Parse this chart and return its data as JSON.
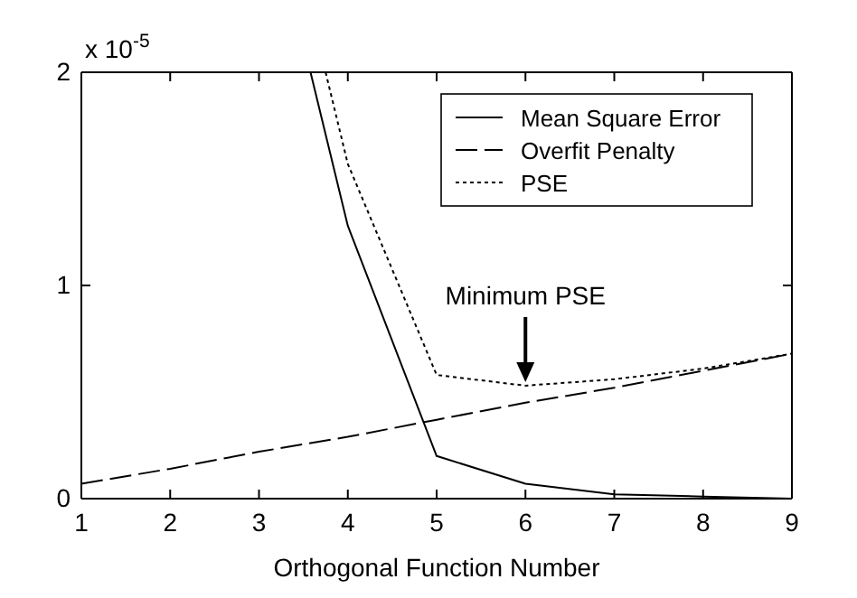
{
  "chart_data": {
    "type": "line",
    "xlabel": "Orthogonal Function Number",
    "xlim": [
      1,
      9
    ],
    "xticks": [
      1,
      2,
      3,
      4,
      5,
      6,
      7,
      8,
      9
    ],
    "ylim": [
      0,
      2
    ],
    "yticks": [
      0,
      1,
      2
    ],
    "series": [
      {
        "name": "Mean Square Error",
        "color": "#000000",
        "line_style": "solid",
        "x": [
          3.58,
          4,
          5,
          6,
          7,
          8,
          9
        ],
        "values": [
          2,
          1.28,
          0.2,
          0.07,
          0.02,
          0.01,
          0
        ]
      },
      {
        "name": "Overfit Penalty",
        "color": "#000000",
        "line_style": "dashed",
        "x": [
          1,
          2,
          3,
          4,
          5,
          6,
          7,
          8,
          9
        ],
        "values": [
          0.07,
          0.14,
          0.22,
          0.29,
          0.37,
          0.45,
          0.52,
          0.6,
          0.68
        ]
      },
      {
        "name": "PSE",
        "color": "#000000",
        "line_style": "dotted",
        "x": [
          3.75,
          4,
          5,
          6,
          7,
          8,
          9
        ],
        "values": [
          2,
          1.57,
          0.58,
          0.53,
          0.56,
          0.61,
          0.68
        ]
      }
    ],
    "annotations": [
      "x 10$^{-5}$",
      {
        "text": "Minimum PSE",
        "x": 6,
        "y": 0.53
      }
    ],
    "legend": "top right",
    "grid": false,
    "marker": "none"
  }
}
